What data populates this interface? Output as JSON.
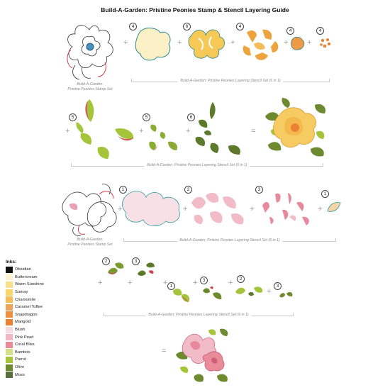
{
  "title": "Build-A-Garden: Pristine Peonies Stamp & Stencil Layering Guide",
  "captions": {
    "stamp_set_line1": "Build-A-Garden:",
    "stamp_set_line2": "Pristine Peonies Stamp Set",
    "stencil_set": "Build-A-Garden: Pristine Peonies Layering Stencil Set (6 in 1)"
  },
  "step_numbers": {
    "r1": [
      "4",
      "6",
      "4",
      "4",
      "4"
    ],
    "r2": [
      "5",
      "5",
      "6"
    ],
    "r3": [
      "1",
      "2",
      "3",
      "1"
    ],
    "r4a": [
      "2",
      "3"
    ],
    "r4b": [
      "1",
      "3",
      "2",
      "3"
    ]
  },
  "operators": {
    "plus": "+",
    "equals": "="
  },
  "inks": {
    "heading": "Inks:",
    "items": [
      {
        "name": "Obsidian",
        "color": "#111111"
      },
      {
        "name": "Buttercream",
        "color": "#fbf3cf"
      },
      {
        "name": "Warm Sunshine",
        "color": "#f9e08a"
      },
      {
        "name": "Sunray",
        "color": "#f7d66a"
      },
      {
        "name": "Chamomile",
        "color": "#f4bc5a"
      },
      {
        "name": "Caramel Toffee",
        "color": "#eda35a"
      },
      {
        "name": "Snapdragon",
        "color": "#ee9044"
      },
      {
        "name": "Marigold",
        "color": "#e98232"
      },
      {
        "name": "Blush",
        "color": "#f4dbe0"
      },
      {
        "name": "Pink Pearl",
        "color": "#f1b8c4"
      },
      {
        "name": "Coral Bliss",
        "color": "#ea8b9a"
      },
      {
        "name": "Bamboo",
        "color": "#d6e08a"
      },
      {
        "name": "Parrot",
        "color": "#a4c43a"
      },
      {
        "name": "Olive",
        "color": "#6d8a2e"
      },
      {
        "name": "Moss",
        "color": "#55703a"
      }
    ]
  }
}
